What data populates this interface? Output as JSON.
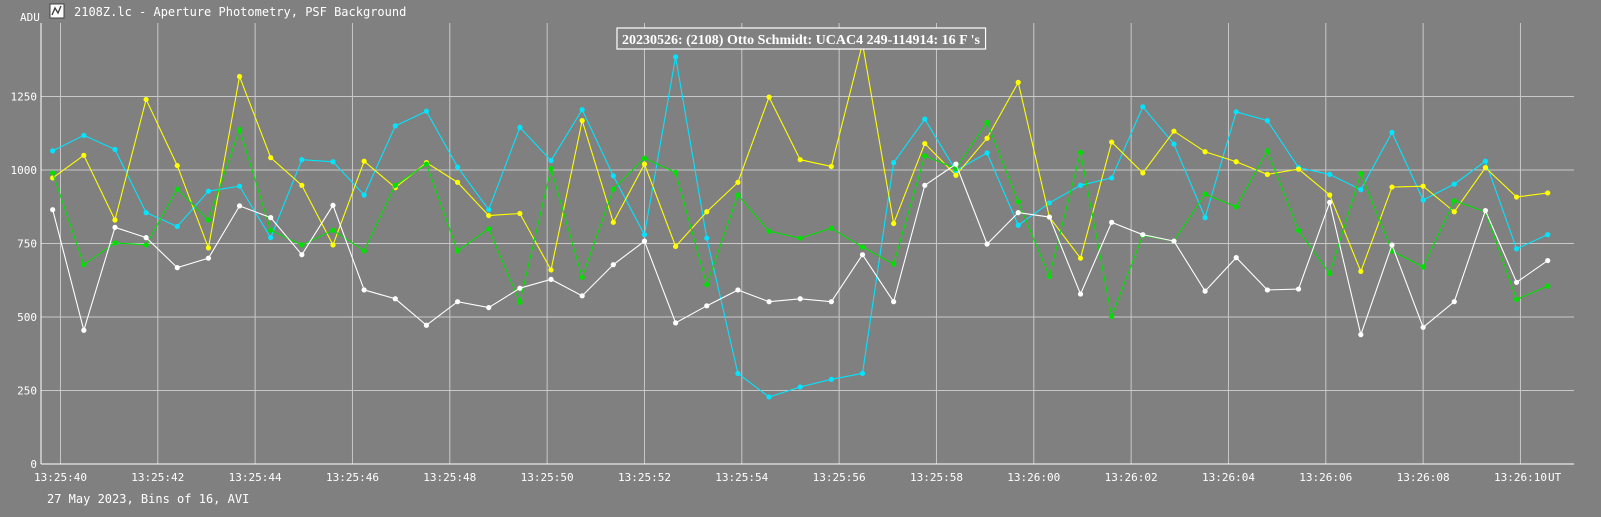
{
  "window": {
    "title": "2108Z.lc - Aperture Photometry, PSF Background",
    "icon": "light-curve-app-icon"
  },
  "footer": {
    "text": "27 May 2023, Bins of 16, AVI"
  },
  "colors": {
    "background": "#808080",
    "grid": "#c8c8c8",
    "axis": "#ffffff",
    "text": "#ffffff",
    "cyan": "#00e5ff",
    "yellow": "#ffff00",
    "green": "#00e000",
    "white": "#ffffff"
  },
  "chart_data": {
    "type": "line",
    "title": "20230526: (2108) Otto Schmidt: UCAC4 249-114914: 16 F 's",
    "xlabel": "UT",
    "ylabel": "ADU",
    "ylim": [
      0,
      1500
    ],
    "xlim": [
      39.6,
      71.1
    ],
    "yticks": [
      0,
      250,
      500,
      750,
      1000,
      1250
    ],
    "xticks": [
      {
        "value": 40,
        "label": "13:25:40"
      },
      {
        "value": 42,
        "label": "13:25:42"
      },
      {
        "value": 44,
        "label": "13:25:44"
      },
      {
        "value": 46,
        "label": "13:25:46"
      },
      {
        "value": 48,
        "label": "13:25:48"
      },
      {
        "value": 50,
        "label": "13:25:50"
      },
      {
        "value": 52,
        "label": "13:25:52"
      },
      {
        "value": 54,
        "label": "13:25:54"
      },
      {
        "value": 56,
        "label": "13:25:56"
      },
      {
        "value": 58,
        "label": "13:25:58"
      },
      {
        "value": 60,
        "label": "13:26:00"
      },
      {
        "value": 62,
        "label": "13:26:02"
      },
      {
        "value": 64,
        "label": "13:26:04"
      },
      {
        "value": 66,
        "label": "13:26:06"
      },
      {
        "value": 68,
        "label": "13:26:08"
      },
      {
        "value": 70,
        "label": "13:26:10"
      }
    ],
    "grid": true,
    "x": [
      39.84,
      40.48,
      41.12,
      41.76,
      42.4,
      43.04,
      43.68,
      44.32,
      44.96,
      45.6,
      46.24,
      46.88,
      47.52,
      48.16,
      48.8,
      49.44,
      50.08,
      50.72,
      51.36,
      52.0,
      52.64,
      53.28,
      53.92,
      54.56,
      55.2,
      55.84,
      56.48,
      57.12,
      57.76,
      58.4,
      59.04,
      59.68,
      60.32,
      60.96,
      61.6,
      62.24,
      62.88,
      63.52,
      64.16,
      64.8,
      65.44,
      66.08,
      66.72,
      67.36,
      68.0,
      68.64,
      69.28,
      69.92,
      70.56
    ],
    "series": [
      {
        "color": "cyan",
        "values": [
          1065,
          1118,
          1070,
          855,
          808,
          928,
          945,
          770,
          1035,
          1028,
          915,
          1150,
          1200,
          1010,
          865,
          1145,
          1032,
          1205,
          980,
          780,
          1385,
          768,
          308,
          228,
          262,
          288,
          308,
          1025,
          1173,
          998,
          1058,
          812,
          888,
          948,
          973,
          1215,
          1088,
          838,
          1198,
          1168,
          1008,
          985,
          933,
          1128,
          898,
          952,
          1030,
          732,
          780
        ]
      },
      {
        "color": "yellow",
        "values": [
          973,
          1050,
          830,
          1240,
          1015,
          735,
          1318,
          1042,
          948,
          745,
          1030,
          940,
          1025,
          958,
          845,
          852,
          660,
          1168,
          822,
          1020,
          740,
          858,
          958,
          1248,
          1035,
          1012,
          1430,
          818,
          1090,
          982,
          1108,
          1298,
          840,
          700,
          1095,
          990,
          1132,
          1062,
          1028,
          985,
          1003,
          915,
          655,
          942,
          945,
          858,
          1008,
          908,
          922
        ]
      },
      {
        "color": "green",
        "values": [
          990,
          678,
          752,
          745,
          935,
          830,
          1138,
          795,
          745,
          795,
          725,
          948,
          1020,
          725,
          800,
          550,
          1005,
          635,
          935,
          1040,
          992,
          610,
          915,
          792,
          768,
          802,
          738,
          680,
          1048,
          1005,
          1162,
          892,
          638,
          1060,
          502,
          778,
          758,
          918,
          875,
          1065,
          795,
          648,
          988,
          725,
          670,
          895,
          858,
          560,
          605
        ]
      },
      {
        "color": "white",
        "values": [
          865,
          455,
          805,
          770,
          668,
          700,
          878,
          838,
          712,
          880,
          592,
          562,
          472,
          552,
          532,
          598,
          628,
          572,
          678,
          758,
          480,
          538,
          592,
          552,
          562,
          552,
          712,
          552,
          948,
          1020,
          748,
          855,
          840,
          578,
          822,
          780,
          758,
          588,
          702,
          592,
          595,
          890,
          440,
          745,
          465,
          552,
          862,
          618,
          692
        ]
      }
    ]
  }
}
